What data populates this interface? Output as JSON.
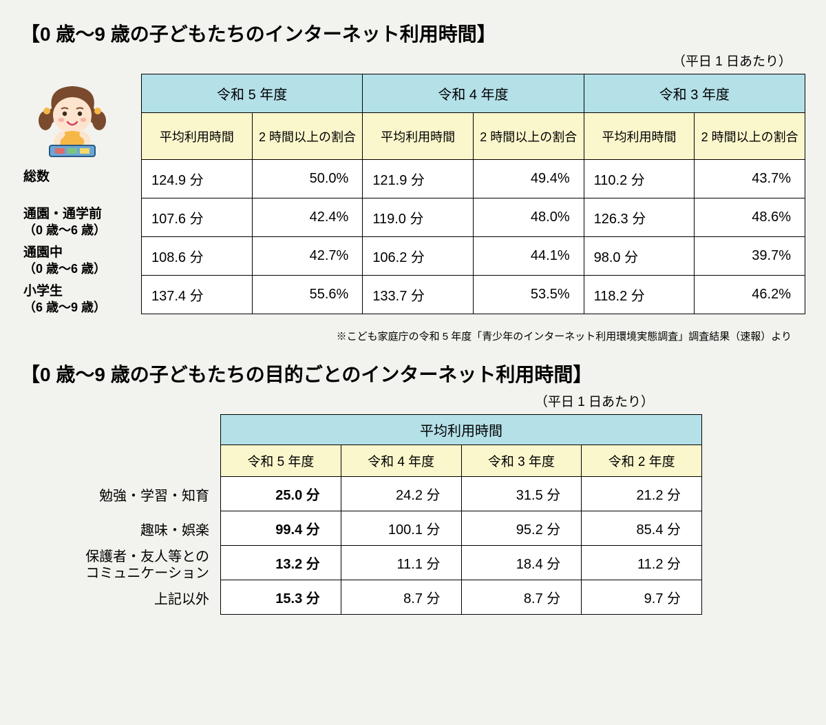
{
  "section1": {
    "title": "【0 歳～9 歳の子どもたちのインターネット利用時間】",
    "subtitle": "（平日 1 日あたり）",
    "years": [
      "令和 5 年度",
      "令和 4 年度",
      "令和 3 年度"
    ],
    "subheaders": [
      "平均利用時間",
      "2 時間以上の割合"
    ],
    "row_labels": [
      {
        "main": "総数",
        "paren": ""
      },
      {
        "main": "通園・通学前",
        "paren": "（0 歳～6 歳）"
      },
      {
        "main": "通園中",
        "paren": "（0 歳～6 歳）"
      },
      {
        "main": "小学生",
        "paren": "（6 歳～9 歳）"
      }
    ],
    "rows": [
      [
        "124.9 分",
        "50.0%",
        "121.9 分",
        "49.4%",
        "110.2 分",
        "43.7%"
      ],
      [
        "107.6 分",
        "42.4%",
        "119.0 分",
        "48.0%",
        "126.3 分",
        "48.6%"
      ],
      [
        "108.6 分",
        "42.7%",
        "106.2 分",
        "44.1%",
        "98.0 分",
        "39.7%"
      ],
      [
        "137.4 分",
        "55.6%",
        "133.7 分",
        "53.5%",
        "118.2 分",
        "46.2%"
      ]
    ],
    "footnote": "※こども家庭庁の令和 5 年度「青少年のインターネット利用環境実態調査」調査結果（速報）より"
  },
  "section2": {
    "title": "【0 歳～9 歳の子どもたちの目的ごとのインターネット利用時間】",
    "subtitle": "（平日 1 日あたり）",
    "top_header": "平均利用時間",
    "years": [
      "令和 5 年度",
      "令和 4 年度",
      "令和 3 年度",
      "令和 2 年度"
    ],
    "row_labels": [
      "勉強・学習・知育",
      "趣味・娯楽",
      "保護者・友人等との\nコミュニケーション",
      "上記以外"
    ],
    "rows": [
      [
        "25.0 分",
        "24.2 分",
        "31.5 分",
        "21.2 分"
      ],
      [
        "99.4 分",
        "100.1 分",
        "95.2 分",
        "85.4 分"
      ],
      [
        "13.2 分",
        "11.1 分",
        "18.4 分",
        "11.2 分"
      ],
      [
        "15.3 分",
        "8.7 分",
        "8.7 分",
        "9.7 分"
      ]
    ]
  },
  "colors": {
    "background": "#f2f3ee",
    "header_blue": "#b4e0e8",
    "header_yellow": "#fbf7cc",
    "cell_bg": "#ffffff",
    "border": "#000000",
    "text": "#000000"
  },
  "typography": {
    "title_fontsize": 28,
    "body_fontsize": 20,
    "footnote_fontsize": 15
  }
}
